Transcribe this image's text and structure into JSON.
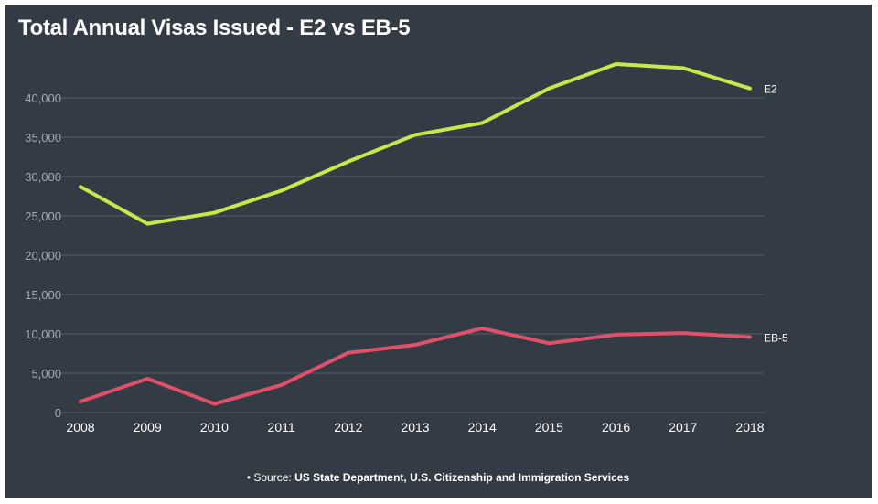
{
  "chart_data": {
    "type": "line",
    "title": "Total Annual Visas Issued - E2 vs EB-5",
    "categories": [
      "2008",
      "2009",
      "2010",
      "2011",
      "2012",
      "2013",
      "2014",
      "2015",
      "2016",
      "2017",
      "2018"
    ],
    "series": [
      {
        "name": "E2",
        "color": "#c5e84a",
        "values": [
          28700,
          24000,
          25400,
          28200,
          31900,
          35300,
          36800,
          41200,
          44300,
          43800,
          41200
        ]
      },
      {
        "name": "EB-5",
        "color": "#e0506a",
        "values": [
          1400,
          4300,
          1100,
          3500,
          7600,
          8600,
          10700,
          8800,
          9900,
          10100,
          9600
        ]
      }
    ],
    "yticks": [
      "0",
      "5,000",
      "10,000",
      "15,000",
      "20,000",
      "25,000",
      "30,000",
      "35,000",
      "40,000"
    ],
    "ylim": [
      0,
      45000
    ],
    "grid": true,
    "source_prefix": "• Source: ",
    "source_text": "US State Department, U.S. Citizenship and Immigration Services"
  },
  "colors": {
    "background": "#333b45",
    "grid": "#56606b",
    "axis_text": "#a3abb4"
  }
}
